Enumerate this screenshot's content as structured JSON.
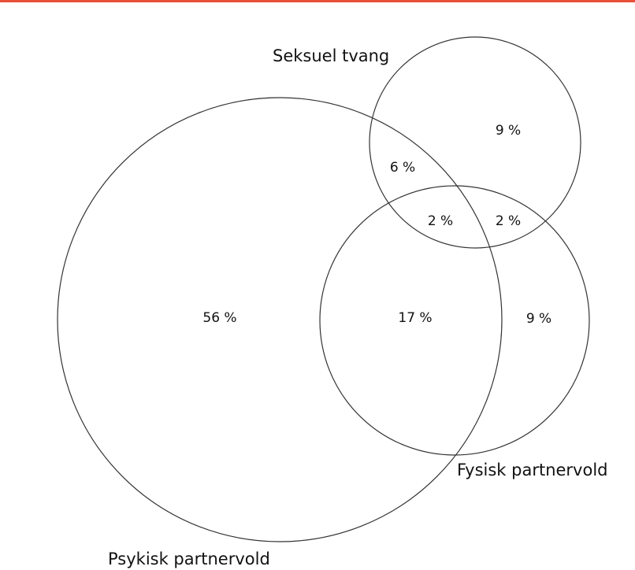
{
  "sets": [
    {
      "label": "Seksuel tvang"
    },
    {
      "label": "Fysisk partnervold"
    },
    {
      "label": "Psykisk partnervold"
    }
  ],
  "regions": [
    {
      "label": "9 %"
    },
    {
      "label": "6 %"
    },
    {
      "label": "2 %"
    },
    {
      "label": "2 %"
    },
    {
      "label": "56 %"
    },
    {
      "label": "17 %"
    },
    {
      "label": "9 %"
    }
  ]
}
